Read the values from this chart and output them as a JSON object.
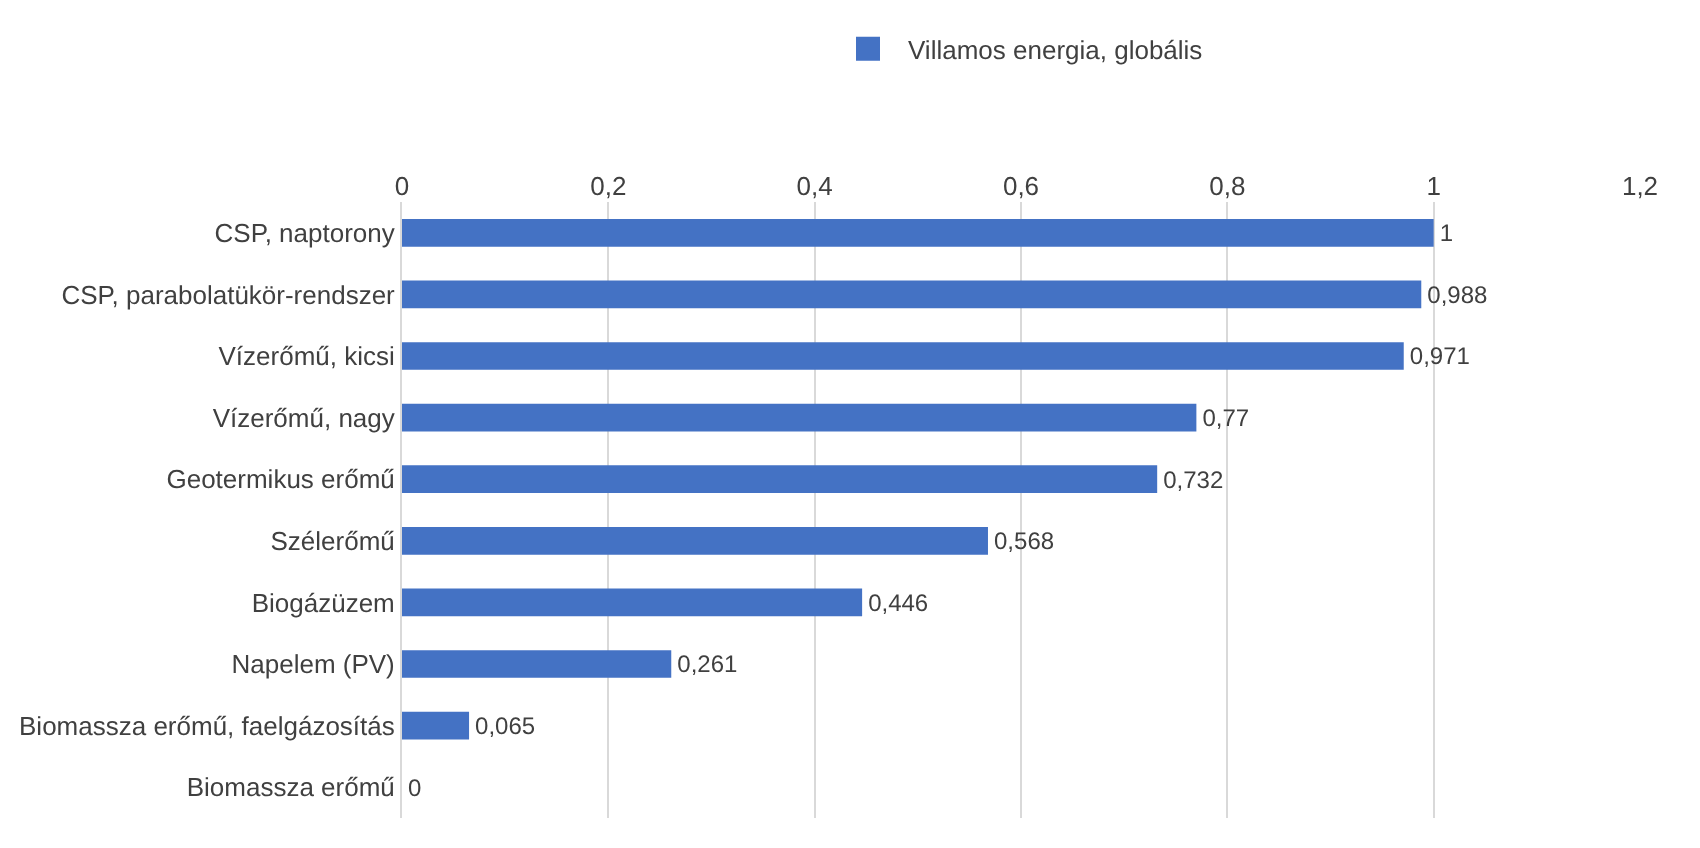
{
  "chart_data": {
    "type": "bar",
    "orientation": "horizontal",
    "categories": [
      "CSP, naptorony",
      "CSP, parabolatükör-rendszer",
      "Vízerőmű, kicsi",
      "Vízerőmű, nagy",
      "Geotermikus erőmű",
      "Szélerőmű",
      "Biogázüzem",
      "Napelem (PV)",
      "Biomassza erőmű, faelgázosítás",
      "Biomassza erőmű"
    ],
    "series": [
      {
        "name": "Villamos energia, globális",
        "color": "#4472c4",
        "values": [
          1,
          0.988,
          0.971,
          0.77,
          0.732,
          0.568,
          0.446,
          0.261,
          0.065,
          0
        ],
        "value_labels": [
          "1",
          "0,988",
          "0,971",
          "0,77",
          "0,732",
          "0,568",
          "0,446",
          "0,261",
          "0,065",
          "0"
        ]
      }
    ],
    "xlim": [
      0,
      1.2
    ],
    "xticks": [
      0,
      {
        "value": 0.2,
        "label": "0,2"
      },
      {
        "value": 0.4,
        "label": "0,4"
      },
      {
        "value": 0.6,
        "label": "0,6"
      },
      {
        "value": 0.8,
        "label": "0,8"
      },
      1,
      {
        "value": 1.2,
        "label": "1,2"
      }
    ],
    "grid": "x",
    "legend": "top"
  }
}
